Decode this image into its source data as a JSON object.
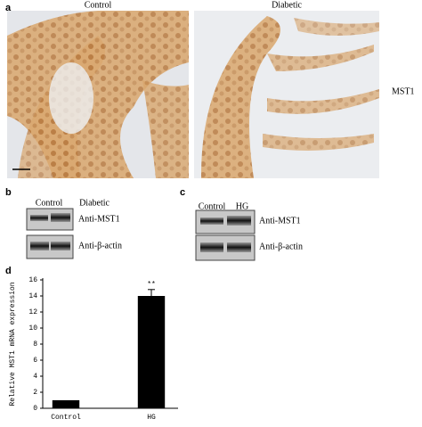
{
  "panels": {
    "a": {
      "label": "a",
      "columns": [
        "Control",
        "Diabetic"
      ],
      "row_label": "MST1"
    },
    "b": {
      "label": "b",
      "columns": [
        "Control",
        "Diabetic"
      ],
      "rows": [
        "Anti-MST1",
        "Anti-β-actin"
      ]
    },
    "c": {
      "label": "c",
      "columns": [
        "Control",
        "HG"
      ],
      "rows": [
        "Anti-MST1",
        "Anti-β-actin"
      ]
    },
    "d": {
      "label": "d"
    }
  },
  "chart_data": {
    "type": "bar",
    "y_label": "Relative MST1 mRNA expression",
    "categories": [
      "Control",
      "HG"
    ],
    "values": [
      1,
      14
    ],
    "errors": [
      null,
      0.8
    ],
    "annotations": [
      null,
      "**"
    ],
    "color": "#000000",
    "ylim": [
      0,
      16
    ],
    "yticks": [
      0,
      2,
      4,
      6,
      8,
      10,
      12,
      14,
      16
    ]
  }
}
